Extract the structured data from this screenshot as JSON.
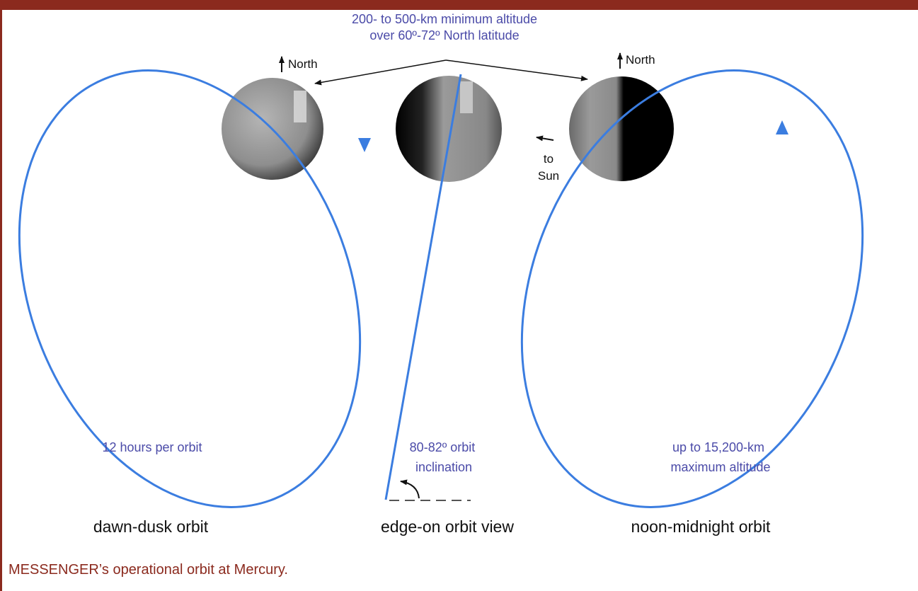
{
  "top_annotation": [
    "200- to 500-km minimum altitude",
    "over 60º-72º North latitude"
  ],
  "north_labels": [
    "North",
    "North"
  ],
  "sun_label": [
    "to",
    "Sun"
  ],
  "period_label": "12 hours per orbit",
  "inclination_label": [
    "80-82º orbit",
    "inclination"
  ],
  "apoapsis_label": [
    "up to 15,200-km",
    "maximum altitude"
  ],
  "panels": [
    {
      "label": "dawn-dusk orbit"
    },
    {
      "label": "edge-on orbit view"
    },
    {
      "label": "noon-midnight orbit"
    }
  ],
  "caption": "MESSENGER’s operational orbit at Mercury."
}
